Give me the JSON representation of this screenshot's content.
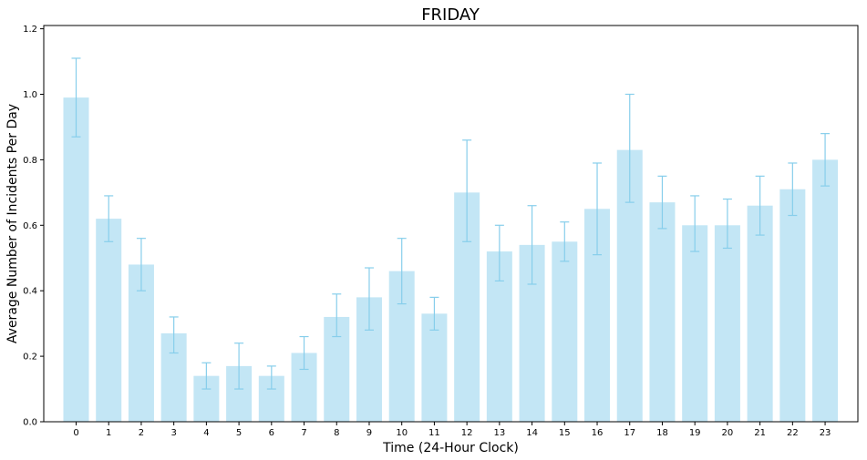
{
  "chart_data": {
    "type": "bar",
    "title": "FRIDAY",
    "xlabel": "Time (24-Hour Clock)",
    "ylabel": "Average Number of Incidents Per Day",
    "categories": [
      "0",
      "1",
      "2",
      "3",
      "4",
      "5",
      "6",
      "7",
      "8",
      "9",
      "10",
      "11",
      "12",
      "13",
      "14",
      "15",
      "16",
      "17",
      "18",
      "19",
      "20",
      "21",
      "22",
      "23"
    ],
    "values": [
      0.99,
      0.62,
      0.48,
      0.27,
      0.14,
      0.17,
      0.14,
      0.21,
      0.32,
      0.38,
      0.46,
      0.33,
      0.7,
      0.52,
      0.54,
      0.55,
      0.65,
      0.83,
      0.67,
      0.6,
      0.6,
      0.66,
      0.71,
      0.8
    ],
    "error_low": [
      0.87,
      0.55,
      0.4,
      0.21,
      0.1,
      0.1,
      0.1,
      0.16,
      0.26,
      0.28,
      0.36,
      0.28,
      0.55,
      0.43,
      0.42,
      0.49,
      0.51,
      0.67,
      0.59,
      0.52,
      0.53,
      0.57,
      0.63,
      0.72
    ],
    "error_high": [
      1.11,
      0.69,
      0.56,
      0.32,
      0.18,
      0.24,
      0.17,
      0.26,
      0.39,
      0.47,
      0.56,
      0.38,
      0.86,
      0.6,
      0.66,
      0.61,
      0.79,
      1.0,
      0.75,
      0.69,
      0.68,
      0.75,
      0.79,
      0.88
    ],
    "ylim": [
      0,
      1.21
    ],
    "yticks": [
      "0.0",
      "0.2",
      "0.4",
      "0.6",
      "0.8",
      "1.0",
      "1.2"
    ],
    "grid": false,
    "colors": {
      "bar": "#87ceeb",
      "bar_opacity": 0.5,
      "error": "#87ceeb",
      "axis": "#000000"
    }
  }
}
